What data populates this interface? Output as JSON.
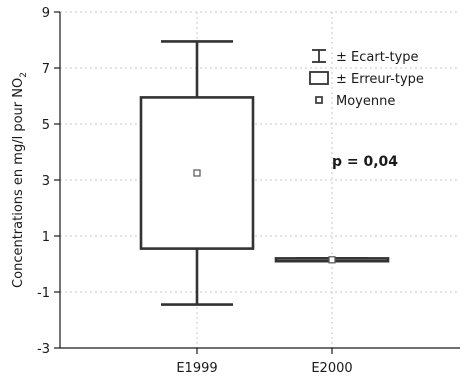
{
  "chart_data": {
    "type": "box",
    "categories": [
      "E1999",
      "E2000"
    ],
    "ylabel": "Concentrations en mg/l pour NO",
    "ylabel_sub": "2",
    "ylim": [
      -3,
      9
    ],
    "yticks": [
      -3,
      -1,
      1,
      3,
      5,
      7,
      9
    ],
    "grid": true,
    "legend_position": "top-right",
    "series": [
      {
        "category": "E1999",
        "mean": 3.25,
        "se_low": 0.55,
        "se_high": 5.95,
        "sd_low": -1.45,
        "sd_high": 7.95
      },
      {
        "category": "E2000",
        "mean": 0.15,
        "se_low": 0.1,
        "se_high": 0.2,
        "sd_low": 0.1,
        "sd_high": 0.2
      }
    ],
    "legend": [
      {
        "kind": "whisker",
        "label": "± Ecart-type"
      },
      {
        "kind": "box",
        "label": "± Erreur-type"
      },
      {
        "kind": "mean",
        "label": "Moyenne"
      }
    ],
    "annotation": "p = 0,04"
  }
}
